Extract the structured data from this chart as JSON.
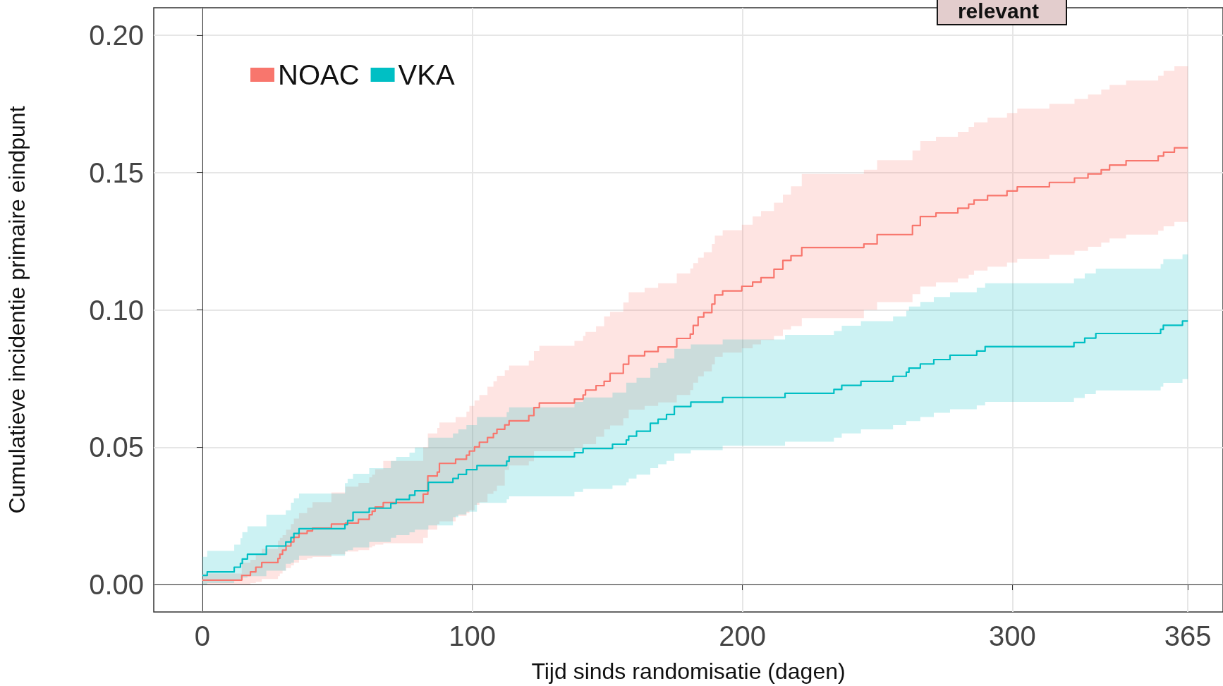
{
  "chart_data": {
    "type": "step",
    "xlabel": "Tijd sinds randomisatie (dagen)",
    "ylabel": "Cumulatieve incidentie primaire eindpunt",
    "xlim": [
      -18,
      378
    ],
    "ylim": [
      -0.01,
      0.21
    ],
    "xticks": [
      0,
      100,
      200,
      300,
      365
    ],
    "yticks": [
      {
        "value": 0,
        "label": "0.00"
      },
      {
        "value": 0.05,
        "label": "0.05"
      },
      {
        "value": 0.1,
        "label": "0.10"
      },
      {
        "value": 0.15,
        "label": "0.15"
      },
      {
        "value": 0.2,
        "label": "0.20"
      }
    ],
    "grid": true,
    "legend": "top left",
    "marker": "none",
    "line_style": "solid",
    "annotations": [
      "relevant"
    ],
    "series": [
      {
        "name": "NOAC",
        "color": "#f8766d",
        "x": [
          0,
          14.6,
          17.8,
          19.8,
          22,
          28,
          28.7,
          29.7,
          31,
          32.8,
          33.9,
          35.8,
          38.8,
          40.8,
          47.8,
          53,
          57.8,
          61.8,
          62.9,
          64,
          67,
          81.8,
          83.5,
          87,
          87.8,
          93.8,
          97.8,
          98.9,
          100.8,
          102.6,
          105.6,
          107.8,
          109.1,
          112,
          113.6,
          120.9,
          122.8,
          124.8,
          137.8,
          141,
          141.9,
          145.8,
          148.8,
          151,
          155.9,
          157.9,
          163.8,
          168.8,
          175.7,
          180.7,
          181.8,
          183.6,
          185.7,
          188.7,
          189.8,
          192.7,
          199.8,
          203.8,
          206.9,
          211.7,
          215,
          218,
          222,
          245,
          249.9,
          263,
          265.9,
          271.7,
          279.8,
          283.8,
          285.8,
          290.8,
          298,
          301.8,
          313.7,
          323,
          328,
          332.9,
          336,
          342.1,
          354,
          356,
          360,
          365
        ],
        "values": [
          0.0016,
          0.0033,
          0.0046,
          0.0063,
          0.008,
          0.0095,
          0.011,
          0.0125,
          0.014,
          0.0155,
          0.0172,
          0.0186,
          0.0195,
          0.0205,
          0.022,
          0.0224,
          0.0237,
          0.0254,
          0.0267,
          0.0282,
          0.0298,
          0.0329,
          0.0395,
          0.0409,
          0.0441,
          0.0456,
          0.0471,
          0.0486,
          0.0501,
          0.0518,
          0.0535,
          0.055,
          0.0565,
          0.0581,
          0.0596,
          0.0615,
          0.0644,
          0.0661,
          0.0675,
          0.069,
          0.0708,
          0.0724,
          0.074,
          0.0769,
          0.0802,
          0.0833,
          0.0848,
          0.0865,
          0.0896,
          0.0912,
          0.0943,
          0.0974,
          0.099,
          0.1021,
          0.1054,
          0.1069,
          0.1086,
          0.1101,
          0.1117,
          0.1148,
          0.118,
          0.1197,
          0.1227,
          0.124,
          0.1274,
          0.1307,
          0.134,
          0.1353,
          0.137,
          0.1385,
          0.14,
          0.1416,
          0.1433,
          0.1448,
          0.1464,
          0.148,
          0.1495,
          0.151,
          0.1527,
          0.1543,
          0.156,
          0.1574,
          0.159,
          0.159
        ],
        "lower": [
          0,
          0,
          0.0005,
          0.001,
          0.002,
          0.003,
          0.004,
          0.005,
          0.006,
          0.007,
          0.008,
          0.009,
          0.0095,
          0.01,
          0.011,
          0.012,
          0.0125,
          0.0135,
          0.014,
          0.0145,
          0.015,
          0.017,
          0.02,
          0.022,
          0.023,
          0.025,
          0.026,
          0.027,
          0.029,
          0.03,
          0.033,
          0.034,
          0.036,
          0.0417,
          0.0433,
          0.0449,
          0.0485,
          0.0485,
          0.0498,
          0.0511,
          0.0511,
          0.0538,
          0.0565,
          0.0579,
          0.0605,
          0.0637,
          0.065,
          0.0663,
          0.069,
          0.0708,
          0.0735,
          0.0758,
          0.0776,
          0.0802,
          0.0829,
          0.0845,
          0.086,
          0.0874,
          0.089,
          0.0905,
          0.0928,
          0.0941,
          0.097,
          0.1,
          0.1028,
          0.1057,
          0.1085,
          0.11,
          0.1114,
          0.1128,
          0.1143,
          0.1157,
          0.1172,
          0.1186,
          0.12,
          0.1215,
          0.123,
          0.1245,
          0.126,
          0.1274,
          0.1288,
          0.1304,
          0.132,
          0.132
        ],
        "upper": [
          0.004,
          0.008,
          0.009,
          0.011,
          0.013,
          0.016,
          0.017,
          0.018,
          0.02,
          0.022,
          0.024,
          0.026,
          0.028,
          0.03,
          0.0335,
          0.0356,
          0.037,
          0.039,
          0.04,
          0.042,
          0.045,
          0.05,
          0.055,
          0.057,
          0.059,
          0.061,
          0.063,
          0.065,
          0.067,
          0.069,
          0.072,
          0.074,
          0.076,
          0.078,
          0.0797,
          0.0815,
          0.085,
          0.0869,
          0.0887,
          0.0905,
          0.092,
          0.094,
          0.0976,
          0.0993,
          0.1027,
          0.1064,
          0.108,
          0.1097,
          0.1133,
          0.1151,
          0.117,
          0.119,
          0.121,
          0.124,
          0.127,
          0.129,
          0.131,
          0.134,
          0.136,
          0.139,
          0.142,
          0.145,
          0.1495,
          0.151,
          0.1545,
          0.158,
          0.1615,
          0.163,
          0.1648,
          0.1666,
          0.1683,
          0.17,
          0.1717,
          0.1733,
          0.175,
          0.1768,
          0.1784,
          0.1802,
          0.1819,
          0.1835,
          0.1852,
          0.187,
          0.1887,
          0.1887
        ]
      },
      {
        "name": "VKA",
        "color": "#00bfc4",
        "x": [
          0,
          1.8,
          11.8,
          14.1,
          14.8,
          16.7,
          23.7,
          30.9,
          32.8,
          33.9,
          35.8,
          52.8,
          53.8,
          55.8,
          61.8,
          69.8,
          71.8,
          76.7,
          78.7,
          83.7,
          92.8,
          94.8,
          97.8,
          101.7,
          112.7,
          113.6,
          137.8,
          141,
          151.9,
          157,
          157.9,
          160.8,
          165.9,
          168.8,
          171.9,
          174.8,
          180.9,
          192.7,
          215.8,
          233.9,
          236.8,
          243.9,
          255.8,
          260.7,
          261.7,
          265.9,
          270.9,
          276.9,
          286.8,
          289.9,
          322.8,
          326.8,
          330.9,
          354.9,
          355.9,
          363,
          365
        ],
        "values": [
          0.0033,
          0.0046,
          0.0063,
          0.0077,
          0.0093,
          0.011,
          0.014,
          0.0155,
          0.0171,
          0.0186,
          0.0203,
          0.0218,
          0.0233,
          0.0263,
          0.0278,
          0.0295,
          0.031,
          0.0325,
          0.0341,
          0.0372,
          0.0386,
          0.0401,
          0.0418,
          0.0433,
          0.0449,
          0.0465,
          0.048,
          0.0495,
          0.0511,
          0.0526,
          0.054,
          0.0558,
          0.0587,
          0.0602,
          0.0619,
          0.0648,
          0.0664,
          0.0681,
          0.0696,
          0.071,
          0.0725,
          0.074,
          0.0758,
          0.0773,
          0.0788,
          0.0803,
          0.0819,
          0.0835,
          0.085,
          0.0866,
          0.0881,
          0.0897,
          0.0914,
          0.0929,
          0.0944,
          0.0959,
          0.0959
        ],
        "lower": [
          0,
          0.0005,
          0.0015,
          0.002,
          0.0025,
          0.003,
          0.005,
          0.0075,
          0.008,
          0.009,
          0.0105,
          0.012,
          0.0125,
          0.0135,
          0.0155,
          0.017,
          0.018,
          0.019,
          0.02,
          0.0215,
          0.0245,
          0.0255,
          0.0265,
          0.0297,
          0.031,
          0.0321,
          0.0337,
          0.0348,
          0.0361,
          0.0372,
          0.0386,
          0.04,
          0.0424,
          0.0438,
          0.045,
          0.0477,
          0.0489,
          0.0505,
          0.052,
          0.0535,
          0.055,
          0.0565,
          0.058,
          0.0595,
          0.0595,
          0.061,
          0.0625,
          0.0638,
          0.0652,
          0.0665,
          0.0679,
          0.0693,
          0.0707,
          0.072,
          0.0734,
          0.0748,
          0.0748
        ],
        "upper": [
          0.0101,
          0.0123,
          0.0145,
          0.0169,
          0.0191,
          0.0212,
          0.0254,
          0.027,
          0.0298,
          0.0314,
          0.0331,
          0.0369,
          0.0385,
          0.0403,
          0.0424,
          0.045,
          0.0465,
          0.048,
          0.0499,
          0.0535,
          0.055,
          0.0565,
          0.058,
          0.061,
          0.0628,
          0.0645,
          0.0665,
          0.0681,
          0.0699,
          0.0735,
          0.0735,
          0.0753,
          0.0789,
          0.0807,
          0.0823,
          0.0858,
          0.0874,
          0.0892,
          0.0909,
          0.0923,
          0.0942,
          0.0959,
          0.0976,
          0.0997,
          0.1012,
          0.1029,
          0.1047,
          0.1064,
          0.1081,
          0.1097,
          0.1114,
          0.1133,
          0.115,
          0.1167,
          0.1185,
          0.1202,
          0.1202
        ]
      }
    ]
  }
}
